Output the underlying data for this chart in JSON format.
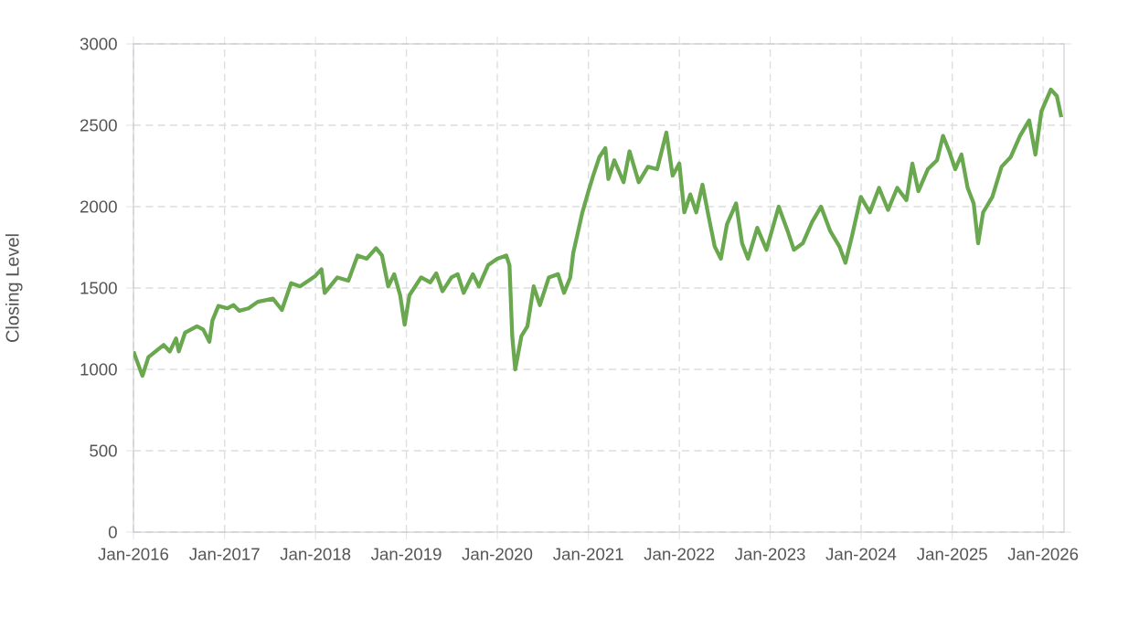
{
  "chart_data": {
    "type": "line",
    "ylabel": "Closing Level",
    "x": [
      "2016-01-01",
      "2016-02-06",
      "2016-03-01",
      "2016-05-01",
      "2016-05-26",
      "2016-06-20",
      "2016-07-01",
      "2016-07-26",
      "2016-09-12",
      "2016-10-07",
      "2016-11-01",
      "2016-11-13",
      "2016-12-07",
      "2017-01-13",
      "2017-02-06",
      "2017-03-01",
      "2017-04-07",
      "2017-05-14",
      "2017-07-14",
      "2017-08-19",
      "2017-09-25",
      "2017-10-31",
      "2018-01-01",
      "2018-01-25",
      "2018-02-07",
      "2018-03-30",
      "2018-05-13",
      "2018-06-19",
      "2018-07-26",
      "2018-09-01",
      "2018-09-25",
      "2018-10-20",
      "2018-11-13",
      "2018-12-07",
      "2018-12-25",
      "2019-01-13",
      "2019-03-01",
      "2019-04-07",
      "2019-05-01",
      "2019-05-26",
      "2019-07-01",
      "2019-07-26",
      "2019-08-19",
      "2019-09-25",
      "2019-10-19",
      "2019-11-25",
      "2020-01-01",
      "2020-02-06",
      "2020-02-19",
      "2020-03-01",
      "2020-03-13",
      "2020-04-07",
      "2020-05-01",
      "2020-05-26",
      "2020-06-20",
      "2020-07-26",
      "2020-09-01",
      "2020-09-25",
      "2020-10-20",
      "2020-11-01",
      "2020-12-07",
      "2021-01-01",
      "2021-01-20",
      "2021-02-14",
      "2021-03-10",
      "2021-03-22",
      "2021-04-15",
      "2021-05-22",
      "2021-06-15",
      "2021-07-22",
      "2021-08-28",
      "2021-10-04",
      "2021-11-10",
      "2021-12-05",
      "2022-01-01",
      "2022-01-21",
      "2022-02-14",
      "2022-03-10",
      "2022-04-04",
      "2022-04-28",
      "2022-05-23",
      "2022-06-17",
      "2022-07-11",
      "2022-08-17",
      "2022-09-10",
      "2022-10-04",
      "2022-11-10",
      "2022-12-17",
      "2023-02-04",
      "2023-03-12",
      "2023-04-06",
      "2023-05-12",
      "2023-06-18",
      "2023-07-24",
      "2023-08-30",
      "2023-10-06",
      "2023-10-30",
      "2023-11-24",
      "2023-12-31",
      "2024-02-05",
      "2024-03-13",
      "2024-04-18",
      "2024-05-25",
      "2024-07-01",
      "2024-07-25",
      "2024-08-18",
      "2024-09-25",
      "2024-11-01",
      "2024-11-25",
      "2024-12-20",
      "2025-01-13",
      "2025-02-07",
      "2025-03-04",
      "2025-03-28",
      "2025-04-15",
      "2025-05-05",
      "2025-06-11",
      "2025-07-18",
      "2025-08-24",
      "2025-09-30",
      "2025-11-06",
      "2025-12-01",
      "2025-12-25",
      "2026-02-01",
      "2026-02-25",
      "2026-03-15"
    ],
    "series": [
      {
        "color": "#6aa84f",
        "values": [
          1110,
          960,
          1075,
          1150,
          1110,
          1190,
          1110,
          1225,
          1265,
          1245,
          1170,
          1300,
          1390,
          1375,
          1395,
          1360,
          1375,
          1415,
          1435,
          1365,
          1530,
          1510,
          1575,
          1615,
          1470,
          1565,
          1545,
          1700,
          1680,
          1745,
          1700,
          1510,
          1585,
          1455,
          1275,
          1455,
          1565,
          1535,
          1590,
          1480,
          1565,
          1585,
          1470,
          1585,
          1510,
          1640,
          1680,
          1700,
          1640,
          1205,
          1000,
          1205,
          1265,
          1510,
          1395,
          1565,
          1585,
          1470,
          1565,
          1715,
          1960,
          2095,
          2190,
          2305,
          2360,
          2170,
          2285,
          2150,
          2340,
          2150,
          2245,
          2230,
          2455,
          2190,
          2265,
          1965,
          2075,
          1965,
          2135,
          1945,
          1755,
          1680,
          1890,
          2020,
          1775,
          1680,
          1870,
          1735,
          2000,
          1850,
          1735,
          1775,
          1905,
          2000,
          1850,
          1755,
          1655,
          1810,
          2060,
          1965,
          2115,
          1980,
          2115,
          2040,
          2265,
          2095,
          2230,
          2285,
          2435,
          2340,
          2230,
          2320,
          2115,
          2020,
          1775,
          1965,
          2060,
          2245,
          2305,
          2435,
          2530,
          2320,
          2585,
          2720,
          2680,
          2550
        ]
      }
    ],
    "xlim": [
      "2016-01-01",
      "2026-03-26"
    ],
    "xticks": [
      {
        "value": "2016-01-01",
        "label": "Jan-2016"
      },
      {
        "value": "2017-01-01",
        "label": "Jan-2017"
      },
      {
        "value": "2018-01-01",
        "label": "Jan-2018"
      },
      {
        "value": "2019-01-01",
        "label": "Jan-2019"
      },
      {
        "value": "2020-01-01",
        "label": "Jan-2020"
      },
      {
        "value": "2021-01-01",
        "label": "Jan-2021"
      },
      {
        "value": "2022-01-01",
        "label": "Jan-2022"
      },
      {
        "value": "2023-01-01",
        "label": "Jan-2023"
      },
      {
        "value": "2024-01-01",
        "label": "Jan-2024"
      },
      {
        "value": "2025-01-01",
        "label": "Jan-2025"
      },
      {
        "value": "2026-01-01",
        "label": "Jan-2026"
      }
    ],
    "ylim": [
      0,
      3000
    ],
    "yticks": [
      0,
      500,
      1000,
      1500,
      2000,
      2500,
      3000
    ],
    "grid": true,
    "marker": "none",
    "line_style": "solid"
  }
}
